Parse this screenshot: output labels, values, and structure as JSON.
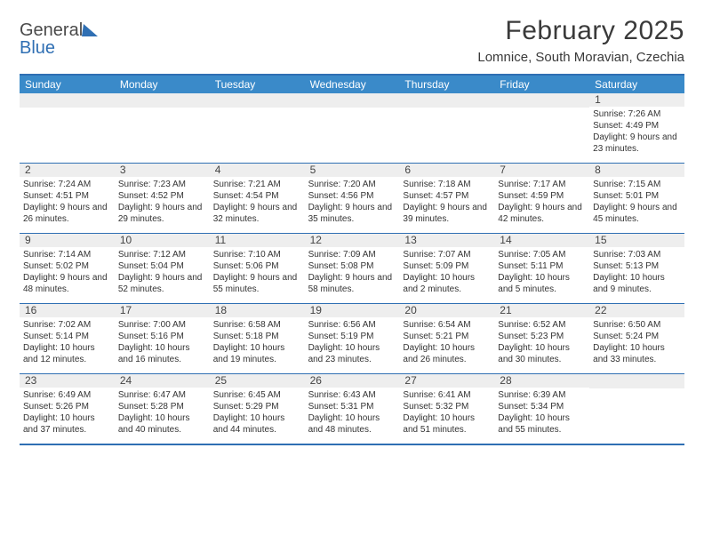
{
  "logo": {
    "line1": "General",
    "line2": "Blue"
  },
  "title": "February 2025",
  "location": "Lomnice, South Moravian, Czechia",
  "colors": {
    "header_bar": "#3a8ac9",
    "rule": "#2f6fb3",
    "daynum_bg": "#eeeeee",
    "text": "#333333",
    "logo_blue": "#2f6fb3"
  },
  "weekdays": [
    "Sunday",
    "Monday",
    "Tuesday",
    "Wednesday",
    "Thursday",
    "Friday",
    "Saturday"
  ],
  "weeks": [
    [
      null,
      null,
      null,
      null,
      null,
      null,
      {
        "n": "1",
        "sr": "Sunrise: 7:26 AM",
        "ss": "Sunset: 4:49 PM",
        "dl": "Daylight: 9 hours and 23 minutes."
      }
    ],
    [
      {
        "n": "2",
        "sr": "Sunrise: 7:24 AM",
        "ss": "Sunset: 4:51 PM",
        "dl": "Daylight: 9 hours and 26 minutes."
      },
      {
        "n": "3",
        "sr": "Sunrise: 7:23 AM",
        "ss": "Sunset: 4:52 PM",
        "dl": "Daylight: 9 hours and 29 minutes."
      },
      {
        "n": "4",
        "sr": "Sunrise: 7:21 AM",
        "ss": "Sunset: 4:54 PM",
        "dl": "Daylight: 9 hours and 32 minutes."
      },
      {
        "n": "5",
        "sr": "Sunrise: 7:20 AM",
        "ss": "Sunset: 4:56 PM",
        "dl": "Daylight: 9 hours and 35 minutes."
      },
      {
        "n": "6",
        "sr": "Sunrise: 7:18 AM",
        "ss": "Sunset: 4:57 PM",
        "dl": "Daylight: 9 hours and 39 minutes."
      },
      {
        "n": "7",
        "sr": "Sunrise: 7:17 AM",
        "ss": "Sunset: 4:59 PM",
        "dl": "Daylight: 9 hours and 42 minutes."
      },
      {
        "n": "8",
        "sr": "Sunrise: 7:15 AM",
        "ss": "Sunset: 5:01 PM",
        "dl": "Daylight: 9 hours and 45 minutes."
      }
    ],
    [
      {
        "n": "9",
        "sr": "Sunrise: 7:14 AM",
        "ss": "Sunset: 5:02 PM",
        "dl": "Daylight: 9 hours and 48 minutes."
      },
      {
        "n": "10",
        "sr": "Sunrise: 7:12 AM",
        "ss": "Sunset: 5:04 PM",
        "dl": "Daylight: 9 hours and 52 minutes."
      },
      {
        "n": "11",
        "sr": "Sunrise: 7:10 AM",
        "ss": "Sunset: 5:06 PM",
        "dl": "Daylight: 9 hours and 55 minutes."
      },
      {
        "n": "12",
        "sr": "Sunrise: 7:09 AM",
        "ss": "Sunset: 5:08 PM",
        "dl": "Daylight: 9 hours and 58 minutes."
      },
      {
        "n": "13",
        "sr": "Sunrise: 7:07 AM",
        "ss": "Sunset: 5:09 PM",
        "dl": "Daylight: 10 hours and 2 minutes."
      },
      {
        "n": "14",
        "sr": "Sunrise: 7:05 AM",
        "ss": "Sunset: 5:11 PM",
        "dl": "Daylight: 10 hours and 5 minutes."
      },
      {
        "n": "15",
        "sr": "Sunrise: 7:03 AM",
        "ss": "Sunset: 5:13 PM",
        "dl": "Daylight: 10 hours and 9 minutes."
      }
    ],
    [
      {
        "n": "16",
        "sr": "Sunrise: 7:02 AM",
        "ss": "Sunset: 5:14 PM",
        "dl": "Daylight: 10 hours and 12 minutes."
      },
      {
        "n": "17",
        "sr": "Sunrise: 7:00 AM",
        "ss": "Sunset: 5:16 PM",
        "dl": "Daylight: 10 hours and 16 minutes."
      },
      {
        "n": "18",
        "sr": "Sunrise: 6:58 AM",
        "ss": "Sunset: 5:18 PM",
        "dl": "Daylight: 10 hours and 19 minutes."
      },
      {
        "n": "19",
        "sr": "Sunrise: 6:56 AM",
        "ss": "Sunset: 5:19 PM",
        "dl": "Daylight: 10 hours and 23 minutes."
      },
      {
        "n": "20",
        "sr": "Sunrise: 6:54 AM",
        "ss": "Sunset: 5:21 PM",
        "dl": "Daylight: 10 hours and 26 minutes."
      },
      {
        "n": "21",
        "sr": "Sunrise: 6:52 AM",
        "ss": "Sunset: 5:23 PM",
        "dl": "Daylight: 10 hours and 30 minutes."
      },
      {
        "n": "22",
        "sr": "Sunrise: 6:50 AM",
        "ss": "Sunset: 5:24 PM",
        "dl": "Daylight: 10 hours and 33 minutes."
      }
    ],
    [
      {
        "n": "23",
        "sr": "Sunrise: 6:49 AM",
        "ss": "Sunset: 5:26 PM",
        "dl": "Daylight: 10 hours and 37 minutes."
      },
      {
        "n": "24",
        "sr": "Sunrise: 6:47 AM",
        "ss": "Sunset: 5:28 PM",
        "dl": "Daylight: 10 hours and 40 minutes."
      },
      {
        "n": "25",
        "sr": "Sunrise: 6:45 AM",
        "ss": "Sunset: 5:29 PM",
        "dl": "Daylight: 10 hours and 44 minutes."
      },
      {
        "n": "26",
        "sr": "Sunrise: 6:43 AM",
        "ss": "Sunset: 5:31 PM",
        "dl": "Daylight: 10 hours and 48 minutes."
      },
      {
        "n": "27",
        "sr": "Sunrise: 6:41 AM",
        "ss": "Sunset: 5:32 PM",
        "dl": "Daylight: 10 hours and 51 minutes."
      },
      {
        "n": "28",
        "sr": "Sunrise: 6:39 AM",
        "ss": "Sunset: 5:34 PM",
        "dl": "Daylight: 10 hours and 55 minutes."
      },
      null
    ]
  ]
}
